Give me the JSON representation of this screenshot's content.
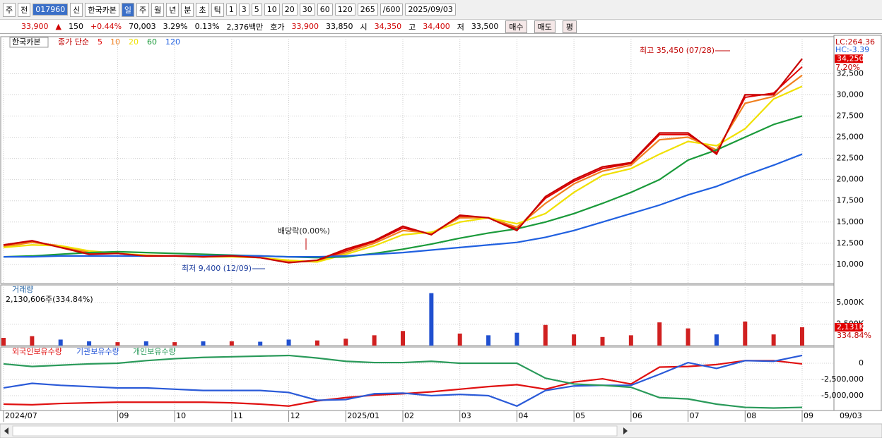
{
  "toolbar": {
    "items": [
      "주",
      "전",
      "017960",
      "신",
      "한국카본",
      "일",
      "주",
      "월",
      "년",
      "분",
      "초",
      "틱",
      "1",
      "3",
      "5",
      "10",
      "20",
      "30",
      "60",
      "120",
      "265",
      "/600",
      "2025/09/03"
    ]
  },
  "quote": {
    "items": [
      "33,900",
      "▲",
      "150",
      "+0.44%",
      "70,003",
      "3.29%",
      "0.13%",
      "2,376백만",
      "호가",
      "33,900",
      "33,850",
      "시",
      "34,350",
      "고",
      "34,400",
      "저",
      "33,500"
    ],
    "buttons": [
      "매수",
      "매도",
      "평"
    ]
  },
  "chart_data": [
    {
      "type": "line",
      "title": "한국카본",
      "legend_title": "종가 단순",
      "categories": [
        "2024/07",
        null,
        null,
        null,
        "09",
        null,
        "10",
        null,
        "11",
        null,
        "12",
        null,
        "2025/01",
        null,
        "02",
        null,
        "03",
        null,
        "04",
        null,
        "05",
        null,
        "06",
        null,
        "07",
        null,
        "08",
        null,
        "09"
      ],
      "cursor_label": "09/03",
      "series": [
        {
          "name": "5",
          "color": "#e00000",
          "values": [
            12200,
            12700,
            12100,
            11300,
            11300,
            11000,
            11000,
            10900,
            11000,
            10800,
            10300,
            10400,
            11600,
            12700,
            14300,
            13600,
            15700,
            15500,
            14200,
            17800,
            19800,
            21300,
            21900,
            25300,
            25300,
            23200,
            29700,
            30200,
            33300
          ]
        },
        {
          "name": "10",
          "color": "#f08020",
          "values": [
            12100,
            12600,
            12200,
            11400,
            11300,
            11000,
            11000,
            10900,
            11000,
            10800,
            10400,
            10300,
            11400,
            12500,
            14000,
            13700,
            15500,
            15500,
            14400,
            17200,
            19500,
            21000,
            21700,
            24700,
            25000,
            23500,
            29000,
            29800,
            32300
          ]
        },
        {
          "name": "20",
          "color": "#f0e000",
          "values": [
            12000,
            12300,
            12200,
            11600,
            11300,
            11100,
            11000,
            10900,
            10900,
            10800,
            10500,
            10300,
            11200,
            12200,
            13500,
            13800,
            15000,
            15500,
            14800,
            16000,
            18500,
            20500,
            21300,
            23000,
            24500,
            24000,
            26000,
            29500,
            31000
          ]
        },
        {
          "name": "60",
          "color": "#1a9a3a",
          "values": [
            10900,
            11000,
            11200,
            11400,
            11500,
            11400,
            11300,
            11200,
            11100,
            11000,
            10900,
            10800,
            10900,
            11300,
            11800,
            12400,
            13100,
            13700,
            14200,
            15000,
            16000,
            17200,
            18500,
            20000,
            22300,
            23500,
            25000,
            26500,
            27500
          ]
        },
        {
          "name": "120",
          "color": "#2060e0",
          "values": [
            10900,
            10900,
            11000,
            11000,
            11000,
            11000,
            11000,
            11000,
            11050,
            11000,
            10900,
            10900,
            11000,
            11200,
            11400,
            11700,
            12000,
            12300,
            12600,
            13200,
            14000,
            15000,
            16000,
            17000,
            18200,
            19200,
            20500,
            21700,
            23000
          ]
        },
        {
          "name": "한국카본",
          "color": "#c80000",
          "values": [
            12300,
            12800,
            12000,
            11200,
            11300,
            11000,
            11000,
            10900,
            11000,
            10800,
            10200,
            10500,
            11800,
            12800,
            14500,
            13500,
            15800,
            15500,
            14000,
            18000,
            20000,
            21500,
            22000,
            25500,
            25500,
            23000,
            30000,
            30000,
            34250
          ]
        }
      ],
      "last_value": {
        "value": 34250,
        "label": "34,250"
      },
      "side_labels": [
        "LC:264.36",
        "HC:-3.39",
        "7.20%"
      ],
      "annotations": [
        "최고 35,450 (07/28)",
        "배당락(0.00%)",
        "최저 9,400 (12/09)"
      ],
      "ylim": [
        7750,
        36850
      ],
      "yticks": [
        {
          "value": 10000,
          "label": "10,000"
        },
        {
          "value": 12500,
          "label": "12,500"
        },
        {
          "value": 15000,
          "label": "15,000"
        },
        {
          "value": 17500,
          "label": "17,500"
        },
        {
          "value": 20000,
          "label": "20,000"
        },
        {
          "value": 22500,
          "label": "22,500"
        },
        {
          "value": 25000,
          "label": "25,000"
        },
        {
          "value": 27500,
          "label": "27,500"
        },
        {
          "value": 30000,
          "label": "30,000"
        },
        {
          "value": 32500,
          "label": "32,500"
        }
      ],
      "grid": true
    },
    {
      "type": "bar",
      "title": "거래량",
      "subtitle": "2,130,606주(334.84%)",
      "values": [
        900,
        1100,
        700,
        500,
        400,
        500,
        400,
        500,
        500,
        450,
        700,
        600,
        800,
        1200,
        1700,
        6100,
        1400,
        1200,
        1500,
        2400,
        1300,
        1000,
        1200,
        2700,
        2000,
        1300,
        2800,
        1300,
        2131
      ],
      "up_color": "#d02020",
      "down_color": "#2050d0",
      "last_value": {
        "value": 2131,
        "label": "2,131K"
      },
      "side_label": "334.84%",
      "ylim": [
        0,
        7050
      ],
      "yticks": [
        {
          "value": 5000,
          "label": "5,000K"
        },
        {
          "value": 2500,
          "label": "2,500K"
        }
      ],
      "grid": true
    },
    {
      "type": "line",
      "series": [
        {
          "name": "외국인보유수량",
          "color": "#e01010",
          "values": [
            -6300000,
            -6400000,
            -6200000,
            -6100000,
            -6000000,
            -6000000,
            -6000000,
            -6000000,
            -6100000,
            -6300000,
            -6600000,
            -5800000,
            -5300000,
            -4900000,
            -4700000,
            -4400000,
            -4000000,
            -3600000,
            -3300000,
            -4000000,
            -2900000,
            -2400000,
            -3200000,
            -600000,
            -500000,
            -200000,
            400000,
            400000,
            -100000
          ]
        },
        {
          "name": "기관보유수량",
          "color": "#2a5ad8",
          "values": [
            -3800000,
            -3100000,
            -3400000,
            -3600000,
            -3800000,
            -3800000,
            -4000000,
            -4200000,
            -4200000,
            -4200000,
            -4500000,
            -5700000,
            -5600000,
            -4700000,
            -4600000,
            -5000000,
            -4800000,
            -5000000,
            -6600000,
            -4200000,
            -3500000,
            -3400000,
            -3400000,
            -1700000,
            100000,
            -800000,
            400000,
            300000,
            1200000
          ]
        },
        {
          "name": "개인보유수량",
          "color": "#2a9a5a",
          "values": [
            -100000,
            -500000,
            -300000,
            -100000,
            0,
            400000,
            700000,
            900000,
            1000000,
            1100000,
            1200000,
            800000,
            300000,
            100000,
            100000,
            300000,
            0,
            0,
            0,
            -2300000,
            -3200000,
            -3400000,
            -3700000,
            -5300000,
            -5500000,
            -6300000,
            -6800000,
            -6900000,
            -6800000
          ]
        }
      ],
      "ylim": [
        -7280000,
        2500000
      ],
      "yticks": [
        0,
        {
          "value": -2500000,
          "label": "-2,500,000"
        },
        {
          "value": -5000000,
          "label": "-5,000,000"
        }
      ],
      "grid": true
    }
  ]
}
